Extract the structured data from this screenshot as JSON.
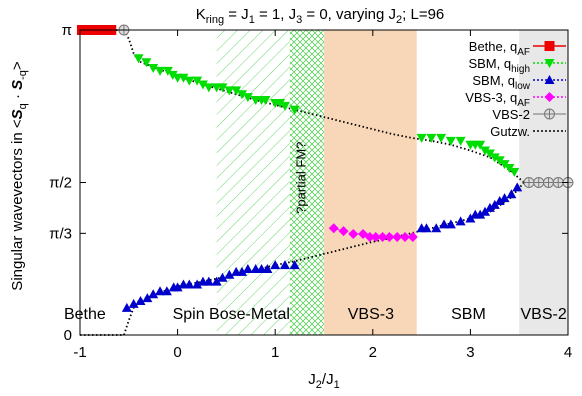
{
  "chart_data": {
    "type": "scatter",
    "title_parts": {
      "a": "K",
      "a_sub": "ring",
      "b": " = J",
      "b_sub": "1",
      "c": " = 1, J",
      "c_sub": "3",
      "d": " = 0, varying J",
      "d_sub": "2",
      "e": "; L=96"
    },
    "xlabel_parts": {
      "a": "J",
      "a_sub": "2",
      "b": "/J",
      "b_sub": "1"
    },
    "ylabel_parts": {
      "a": "Singular wavevectors in <",
      "b": "S",
      "b_sub": "q",
      "c": " · ",
      "d": "S",
      "d_sub": "-q",
      "e": ">"
    },
    "xlim": [
      -1,
      4
    ],
    "ylim": [
      0,
      3.14159
    ],
    "xticks": [
      {
        "v": -1,
        "label": "-1"
      },
      {
        "v": 0,
        "label": "0"
      },
      {
        "v": 1,
        "label": "1"
      },
      {
        "v": 2,
        "label": "2"
      },
      {
        "v": 3,
        "label": "3"
      },
      {
        "v": 4,
        "label": "4"
      }
    ],
    "yticks": [
      {
        "v": 0,
        "label": "0"
      },
      {
        "v": 1.0472,
        "label": "π/3"
      },
      {
        "v": 1.5708,
        "label": "π/2"
      },
      {
        "v": 3.14159,
        "label": "π"
      }
    ],
    "regions": [
      {
        "name": "hatch",
        "x0": 0.4,
        "x1": 1.15,
        "style": "hatch"
      },
      {
        "name": "crosshatch",
        "x0": 1.15,
        "x1": 1.5,
        "style": "crosshatch"
      },
      {
        "name": "vbs3",
        "x0": 1.5,
        "x1": 2.45,
        "color": "#f8d7b8"
      },
      {
        "name": "vbs2",
        "x0": 3.5,
        "x1": 4.0,
        "color": "#e8e8e8"
      }
    ],
    "annotations": [
      {
        "text": "Bethe",
        "x": -0.95,
        "y": 0.22
      },
      {
        "text": "Spin Bose-Metal",
        "x": 0.55,
        "y": 0.22
      },
      {
        "text": "VBS-3",
        "x": 1.98,
        "y": 0.22
      },
      {
        "text": "SBM",
        "x": 2.98,
        "y": 0.22
      },
      {
        "text": "VBS-2",
        "x": 3.75,
        "y": 0.22
      }
    ],
    "rotated_label": {
      "text": "?partial FM?",
      "x": 1.31,
      "y": 1.62
    },
    "legend": {
      "placement": "top-right",
      "entries": [
        {
          "parts": {
            "a": "Bethe, q",
            "a_sub": "AF"
          },
          "color": "#ee0000",
          "marker": "square",
          "line": "solid"
        },
        {
          "parts": {
            "a": "SBM, q",
            "a_sub": "high"
          },
          "color": "#00dd00",
          "marker": "triangle-down",
          "line": "dotted"
        },
        {
          "parts": {
            "a": "SBM, q",
            "a_sub": "low"
          },
          "color": "#0000cc",
          "marker": "triangle-up",
          "line": "dotted"
        },
        {
          "parts": {
            "a": "VBS-3, q",
            "a_sub": "AF"
          },
          "color": "#ff00ff",
          "marker": "diamond",
          "line": "dotted"
        },
        {
          "parts": {
            "a": "VBS-2",
            "a_sub": ""
          },
          "color": "#999999",
          "marker": "circle-cross",
          "line": "solid"
        },
        {
          "parts": {
            "a": "Gutzw.",
            "a_sub": ""
          },
          "color": "#000000",
          "marker": "none",
          "line": "dotted"
        }
      ]
    },
    "series": [
      {
        "name": "Bethe, q_AF",
        "color": "#ee0000",
        "marker": "square",
        "x": [
          -0.98,
          -0.93,
          -0.88,
          -0.83,
          -0.78,
          -0.73,
          -0.68
        ],
        "y": [
          3.1416,
          3.1416,
          3.1416,
          3.1416,
          3.1416,
          3.1416,
          3.1416
        ]
      },
      {
        "name": "SBM, q_high",
        "color": "#00dd00",
        "marker": "triangle-down",
        "x": [
          -0.4,
          -0.32,
          -0.25,
          -0.18,
          -0.1,
          -0.05,
          0.0,
          0.06,
          0.12,
          0.2,
          0.26,
          0.32,
          0.4,
          0.46,
          0.53,
          0.6,
          0.66,
          0.72,
          0.8,
          0.86,
          0.9,
          1.0,
          1.05,
          1.1,
          1.2,
          2.5,
          2.6,
          2.7,
          2.8,
          2.9,
          3.0,
          3.05,
          3.1,
          3.15,
          3.2,
          3.25,
          3.3,
          3.35,
          3.4,
          3.45
        ],
        "y": [
          2.85,
          2.81,
          2.75,
          2.72,
          2.72,
          2.68,
          2.65,
          2.65,
          2.62,
          2.62,
          2.58,
          2.55,
          2.55,
          2.55,
          2.52,
          2.52,
          2.48,
          2.45,
          2.42,
          2.42,
          2.42,
          2.39,
          2.39,
          2.36,
          2.32,
          2.03,
          2.03,
          2.03,
          2.0,
          2.0,
          1.96,
          1.96,
          1.96,
          1.9,
          1.87,
          1.83,
          1.8,
          1.76,
          1.72,
          1.68
        ]
      },
      {
        "name": "SBM, q_low",
        "color": "#0000cc",
        "marker": "triangle-up",
        "x": [
          -0.52,
          -0.45,
          -0.38,
          -0.31,
          -0.25,
          -0.18,
          -0.11,
          -0.04,
          0.0,
          0.06,
          0.12,
          0.2,
          0.26,
          0.32,
          0.4,
          0.46,
          0.53,
          0.6,
          0.66,
          0.72,
          0.8,
          0.86,
          0.92,
          1.0,
          1.1,
          1.2,
          2.5,
          2.55,
          2.65,
          2.73,
          2.8,
          2.9,
          3.0,
          3.05,
          3.1,
          3.15,
          3.2,
          3.25,
          3.3,
          3.35,
          3.42,
          3.48
        ],
        "y": [
          0.28,
          0.32,
          0.35,
          0.38,
          0.42,
          0.45,
          0.45,
          0.49,
          0.49,
          0.52,
          0.52,
          0.52,
          0.55,
          0.55,
          0.55,
          0.59,
          0.62,
          0.65,
          0.65,
          0.68,
          0.68,
          0.68,
          0.68,
          0.72,
          0.72,
          0.72,
          1.1,
          1.1,
          1.1,
          1.14,
          1.14,
          1.17,
          1.2,
          1.24,
          1.24,
          1.27,
          1.31,
          1.34,
          1.38,
          1.41,
          1.45,
          1.52
        ]
      },
      {
        "name": "VBS-3, q_AF",
        "color": "#ff00ff",
        "marker": "diamond",
        "x": [
          1.6,
          1.7,
          1.8,
          1.9,
          1.97,
          2.03,
          2.1,
          2.17,
          2.25,
          2.33,
          2.41
        ],
        "y": [
          1.1,
          1.07,
          1.04,
          1.04,
          1.01,
          1.01,
          1.01,
          1.01,
          1.01,
          1.01,
          1.01
        ]
      },
      {
        "name": "VBS-2",
        "color": "#999999",
        "marker": "circle-cross",
        "x": [
          -0.55,
          3.6,
          3.7,
          3.8,
          3.9,
          4.0
        ],
        "y": [
          3.1416,
          1.5708,
          1.5708,
          1.5708,
          1.5708,
          1.5708
        ]
      }
    ],
    "gutzw_upper": {
      "x": [
        -1.0,
        -0.55,
        -0.5,
        -0.45,
        -0.4,
        -0.2,
        0.0,
        0.2,
        0.4,
        0.6,
        0.8,
        1.0,
        1.2,
        1.4,
        1.6,
        1.8,
        2.0,
        2.2,
        2.4,
        2.6,
        2.8,
        3.0,
        3.2,
        3.4,
        3.55,
        4.0
      ],
      "y": [
        3.1416,
        3.14,
        3.05,
        2.9,
        2.82,
        2.74,
        2.67,
        2.6,
        2.54,
        2.48,
        2.42,
        2.37,
        2.32,
        2.27,
        2.22,
        2.17,
        2.12,
        2.07,
        2.03,
        2.0,
        1.96,
        1.9,
        1.83,
        1.7,
        1.5708,
        1.5708
      ]
    },
    "gutzw_lower": {
      "x": [
        -1.0,
        -0.55,
        -0.5,
        -0.45,
        -0.4,
        -0.2,
        0.0,
        0.2,
        0.4,
        0.6,
        0.8,
        1.0,
        1.2,
        1.4,
        1.6,
        1.8,
        2.0,
        2.2,
        2.4,
        2.6,
        2.8,
        3.0,
        3.2,
        3.4,
        3.55
      ],
      "y": [
        0.0,
        0.0,
        0.15,
        0.28,
        0.35,
        0.43,
        0.5,
        0.54,
        0.58,
        0.63,
        0.67,
        0.72,
        0.76,
        0.81,
        0.86,
        0.91,
        0.96,
        1.0,
        1.05,
        1.1,
        1.15,
        1.2,
        1.27,
        1.4,
        1.5708
      ]
    }
  }
}
